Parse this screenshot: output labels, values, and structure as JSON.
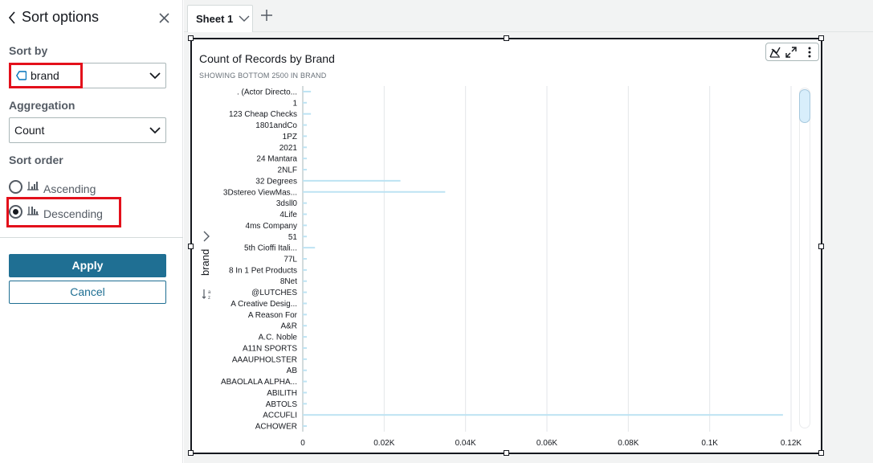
{
  "sort_panel": {
    "title": "Sort options",
    "sort_by": {
      "label": "Sort by",
      "value": "brand"
    },
    "aggregation": {
      "label": "Aggregation",
      "value": "Count"
    },
    "sort_order": {
      "label": "Sort order",
      "options": [
        {
          "label": "Ascending",
          "selected": false
        },
        {
          "label": "Descending",
          "selected": true
        }
      ]
    },
    "apply_label": "Apply",
    "cancel_label": "Cancel",
    "highlight_color": "#e3101b"
  },
  "sheets": {
    "tabs": [
      {
        "label": "Sheet 1"
      }
    ]
  },
  "visual": {
    "title": "Count of Records by Brand",
    "subtitle": "SHOWING BOTTOM 2500 IN BRAND",
    "y_axis_field": "brand"
  },
  "colors": {
    "accent": "#1f6f93",
    "bar": "#bde3f3",
    "gridline": "#e3e6e9"
  },
  "chart_data": {
    "type": "bar",
    "orientation": "horizontal",
    "title": "Count of Records by Brand",
    "subtitle": "SHOWING BOTTOM 2500 IN BRAND",
    "ylabel": "brand",
    "xlabel": "",
    "categories": [
      ". (Actor Directo...",
      "1",
      "123 Cheap Checks",
      "1801andCo",
      "1PZ",
      "2021",
      "24 Mantara",
      "2NLF",
      "32 Degrees",
      "3Dstereo ViewMas...",
      "3dsll0",
      "4Life",
      "4ms Company",
      "51",
      "5th Cioffi Itali...",
      "77L",
      "8 In 1 Pet Products",
      "8Net",
      "@LUTCHES",
      "A Creative Desig...",
      "A Reason For",
      "A&R",
      "A.C. Noble",
      "A11N SPORTS",
      "AAAUPHOLSTER",
      "AB",
      "ABAOLALA ALPHA...",
      "ABILITH",
      "ABTOLS",
      "ACCUFLI",
      "ACHOWER"
    ],
    "values": [
      2,
      1,
      2,
      1,
      1,
      1,
      1,
      1,
      24,
      35,
      1,
      1,
      1,
      1,
      3,
      1,
      1,
      1,
      1,
      1,
      1,
      1,
      1,
      1,
      1,
      1,
      1,
      1,
      1,
      118,
      1
    ],
    "x_ticks": [
      "0",
      "0.02K",
      "0.04K",
      "0.06K",
      "0.08K",
      "0.1K",
      "0.12K"
    ],
    "xlim": [
      0,
      120
    ],
    "grid": true
  }
}
